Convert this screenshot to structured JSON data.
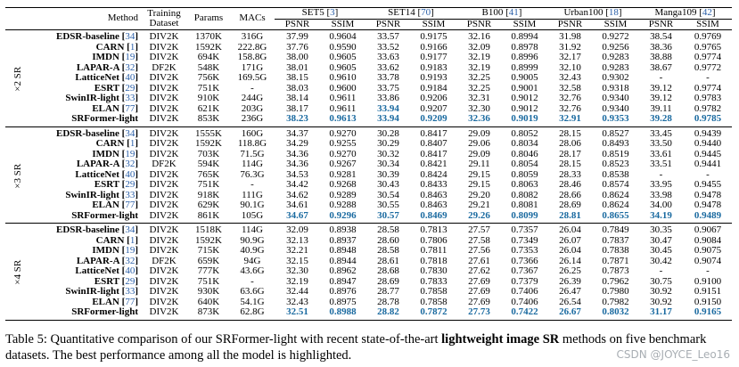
{
  "columns": {
    "method": "Method",
    "training_dataset": "Training Dataset",
    "params": "Params",
    "macs": "MACs",
    "psnr": "PSNR",
    "ssim": "SSIM"
  },
  "datasets": [
    {
      "name": "SET5",
      "cite": "3"
    },
    {
      "name": "SET14",
      "cite": "70"
    },
    {
      "name": "B100",
      "cite": "41"
    },
    {
      "name": "Urban100",
      "cite": "18"
    },
    {
      "name": "Manga109",
      "cite": "42"
    }
  ],
  "groups": [
    {
      "scale": "×2 SR",
      "rows": [
        {
          "method": "EDSR-baseline",
          "cite": "34",
          "train": "DIV2K",
          "params": "1370K",
          "macs": "316G",
          "v": [
            "37.99",
            "0.9604",
            "33.57",
            "0.9175",
            "32.16",
            "0.8994",
            "31.98",
            "0.9272",
            "38.54",
            "0.9769"
          ],
          "best": []
        },
        {
          "method": "CARN",
          "cite": "1",
          "train": "DIV2K",
          "params": "1592K",
          "macs": "222.8G",
          "v": [
            "37.76",
            "0.9590",
            "33.52",
            "0.9166",
            "32.09",
            "0.8978",
            "31.92",
            "0.9256",
            "38.36",
            "0.9765"
          ],
          "best": []
        },
        {
          "method": "IMDN",
          "cite": "19",
          "train": "DIV2K",
          "params": "694K",
          "macs": "158.8G",
          "v": [
            "38.00",
            "0.9605",
            "33.63",
            "0.9177",
            "32.19",
            "0.8996",
            "32.17",
            "0.9283",
            "38.88",
            "0.9774"
          ],
          "best": []
        },
        {
          "method": "LAPAR-A",
          "cite": "32",
          "train": "DF2K",
          "params": "548K",
          "macs": "171G",
          "v": [
            "38.01",
            "0.9605",
            "33.62",
            "0.9183",
            "32.19",
            "0.8999",
            "32.10",
            "0.9283",
            "38.67",
            "0.9772"
          ],
          "best": []
        },
        {
          "method": "LatticeNet",
          "cite": "40",
          "train": "DIV2K",
          "params": "756K",
          "macs": "169.5G",
          "v": [
            "38.15",
            "0.9610",
            "33.78",
            "0.9193",
            "32.25",
            "0.9005",
            "32.43",
            "0.9302",
            "-",
            "-"
          ],
          "best": []
        },
        {
          "method": "ESRT",
          "cite": "29",
          "train": "DIV2K",
          "params": "751K",
          "macs": "-",
          "v": [
            "38.03",
            "0.9600",
            "33.75",
            "0.9184",
            "32.25",
            "0.9001",
            "32.58",
            "0.9318",
            "39.12",
            "0.9774"
          ],
          "best": []
        },
        {
          "method": "SwinIR-light",
          "cite": "33",
          "train": "DIV2K",
          "params": "910K",
          "macs": "244G",
          "v": [
            "38.14",
            "0.9611",
            "33.86",
            "0.9206",
            "32.31",
            "0.9012",
            "32.76",
            "0.9340",
            "39.12",
            "0.9783"
          ],
          "best": []
        },
        {
          "method": "ELAN",
          "cite": "77",
          "train": "DIV2K",
          "params": "621K",
          "macs": "203G",
          "v": [
            "38.17",
            "0.9611",
            "33.94",
            "0.9207",
            "32.30",
            "0.9012",
            "32.76",
            "0.9340",
            "39.11",
            "0.9782"
          ],
          "best": [
            2
          ]
        },
        {
          "method": "SRFormer-light",
          "cite": "",
          "train": "DIV2K",
          "params": "853K",
          "macs": "236G",
          "v": [
            "38.23",
            "0.9613",
            "33.94",
            "0.9209",
            "32.36",
            "0.9019",
            "32.91",
            "0.9353",
            "39.28",
            "0.9785"
          ],
          "best": [
            0,
            1,
            2,
            3,
            4,
            5,
            6,
            7,
            8,
            9
          ]
        }
      ]
    },
    {
      "scale": "×3 SR",
      "rows": [
        {
          "method": "EDSR-baseline",
          "cite": "34",
          "train": "DIV2K",
          "params": "1555K",
          "macs": "160G",
          "v": [
            "34.37",
            "0.9270",
            "30.28",
            "0.8417",
            "29.09",
            "0.8052",
            "28.15",
            "0.8527",
            "33.45",
            "0.9439"
          ],
          "best": []
        },
        {
          "method": "CARN",
          "cite": "1",
          "train": "DIV2K",
          "params": "1592K",
          "macs": "118.8G",
          "v": [
            "34.29",
            "0.9255",
            "30.29",
            "0.8407",
            "29.06",
            "0.8034",
            "28.06",
            "0.8493",
            "33.50",
            "0.9440"
          ],
          "best": []
        },
        {
          "method": "IMDN",
          "cite": "19",
          "train": "DIV2K",
          "params": "703K",
          "macs": "71.5G",
          "v": [
            "34.36",
            "0.9270",
            "30.32",
            "0.8417",
            "29.09",
            "0.8046",
            "28.17",
            "0.8519",
            "33.61",
            "0.9445"
          ],
          "best": []
        },
        {
          "method": "LAPAR-A",
          "cite": "32",
          "train": "DF2K",
          "params": "594K",
          "macs": "114G",
          "v": [
            "34.36",
            "0.9267",
            "30.34",
            "0.8421",
            "29.11",
            "0.8054",
            "28.15",
            "0.8523",
            "33.51",
            "0.9441"
          ],
          "best": []
        },
        {
          "method": "LatticeNet",
          "cite": "40",
          "train": "DIV2K",
          "params": "765K",
          "macs": "76.3G",
          "v": [
            "34.53",
            "0.9281",
            "30.39",
            "0.8424",
            "29.15",
            "0.8059",
            "28.33",
            "0.8538",
            "-",
            "-"
          ],
          "best": []
        },
        {
          "method": "ESRT",
          "cite": "29",
          "train": "DIV2K",
          "params": "751K",
          "macs": "-",
          "v": [
            "34.42",
            "0.9268",
            "30.43",
            "0.8433",
            "29.15",
            "0.8063",
            "28.46",
            "0.8574",
            "33.95",
            "0.9455"
          ],
          "best": []
        },
        {
          "method": "SwinIR-light",
          "cite": "33",
          "train": "DIV2K",
          "params": "918K",
          "macs": "111G",
          "v": [
            "34.62",
            "0.9289",
            "30.54",
            "0.8463",
            "29.20",
            "0.8082",
            "28.66",
            "0.8624",
            "33.98",
            "0.9478"
          ],
          "best": []
        },
        {
          "method": "ELAN",
          "cite": "77",
          "train": "DIV2K",
          "params": "629K",
          "macs": "90.1G",
          "v": [
            "34.61",
            "0.9288",
            "30.55",
            "0.8463",
            "29.21",
            "0.8081",
            "28.69",
            "0.8624",
            "34.00",
            "0.9478"
          ],
          "best": []
        },
        {
          "method": "SRFormer-light",
          "cite": "",
          "train": "DIV2K",
          "params": "861K",
          "macs": "105G",
          "v": [
            "34.67",
            "0.9296",
            "30.57",
            "0.8469",
            "29.26",
            "0.8099",
            "28.81",
            "0.8655",
            "34.19",
            "0.9489"
          ],
          "best": [
            0,
            1,
            2,
            3,
            4,
            5,
            6,
            7,
            8,
            9
          ]
        }
      ]
    },
    {
      "scale": "×4 SR",
      "rows": [
        {
          "method": "EDSR-baseline",
          "cite": "34",
          "train": "DIV2K",
          "params": "1518K",
          "macs": "114G",
          "v": [
            "32.09",
            "0.8938",
            "28.58",
            "0.7813",
            "27.57",
            "0.7357",
            "26.04",
            "0.7849",
            "30.35",
            "0.9067"
          ],
          "best": []
        },
        {
          "method": "CARN",
          "cite": "1",
          "train": "DIV2K",
          "params": "1592K",
          "macs": "90.9G",
          "v": [
            "32.13",
            "0.8937",
            "28.60",
            "0.7806",
            "27.58",
            "0.7349",
            "26.07",
            "0.7837",
            "30.47",
            "0.9084"
          ],
          "best": []
        },
        {
          "method": "IMDN",
          "cite": "19",
          "train": "DIV2K",
          "params": "715K",
          "macs": "40.9G",
          "v": [
            "32.21",
            "0.8948",
            "28.58",
            "0.7811",
            "27.56",
            "0.7353",
            "26.04",
            "0.7838",
            "30.45",
            "0.9075"
          ],
          "best": []
        },
        {
          "method": "LAPAR-A",
          "cite": "32",
          "train": "DF2K",
          "params": "659K",
          "macs": "94G",
          "v": [
            "32.15",
            "0.8944",
            "28.61",
            "0.7818",
            "27.61",
            "0.7366",
            "26.14",
            "0.7871",
            "30.42",
            "0.9074"
          ],
          "best": []
        },
        {
          "method": "LatticeNet",
          "cite": "40",
          "train": "DIV2K",
          "params": "777K",
          "macs": "43.6G",
          "v": [
            "32.30",
            "0.8962",
            "28.68",
            "0.7830",
            "27.62",
            "0.7367",
            "26.25",
            "0.7873",
            "-",
            "-"
          ],
          "best": []
        },
        {
          "method": "ESRT",
          "cite": "29",
          "train": "DIV2K",
          "params": "751K",
          "macs": "-",
          "v": [
            "32.19",
            "0.8947",
            "28.69",
            "0.7833",
            "27.69",
            "0.7379",
            "26.39",
            "0.7962",
            "30.75",
            "0.9100"
          ],
          "best": []
        },
        {
          "method": "SwinIR-light",
          "cite": "33",
          "train": "DIV2K",
          "params": "930K",
          "macs": "63.6G",
          "v": [
            "32.44",
            "0.8976",
            "28.77",
            "0.7858",
            "27.69",
            "0.7406",
            "26.47",
            "0.7980",
            "30.92",
            "0.9151"
          ],
          "best": []
        },
        {
          "method": "ELAN",
          "cite": "77",
          "train": "DIV2K",
          "params": "640K",
          "macs": "54.1G",
          "v": [
            "32.43",
            "0.8975",
            "28.78",
            "0.7858",
            "27.69",
            "0.7406",
            "26.54",
            "0.7982",
            "30.92",
            "0.9150"
          ],
          "best": []
        },
        {
          "method": "SRFormer-light",
          "cite": "",
          "train": "DIV2K",
          "params": "873K",
          "macs": "62.8G",
          "v": [
            "32.51",
            "0.8988",
            "28.82",
            "0.7872",
            "27.73",
            "0.7422",
            "26.67",
            "0.8032",
            "31.17",
            "0.9165"
          ],
          "best": [
            0,
            1,
            2,
            3,
            4,
            5,
            6,
            7,
            8,
            9
          ]
        }
      ]
    }
  ],
  "caption": {
    "prefix": "Table 5: Quantitative comparison of our SRFormer-light with recent state-of-the-art ",
    "bold": "lightweight image SR",
    "suffix": " methods on five benchmark datasets. The best performance among all the model is highlighted."
  },
  "watermark": "CSDN @JOYCE_Leo16"
}
